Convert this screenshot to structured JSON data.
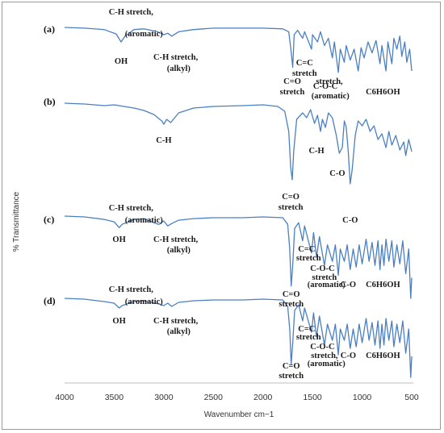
{
  "chart_data": {
    "type": "line",
    "xlabel": "Wavenumber cm−1",
    "ylabel": "% Transmittance",
    "xlim": [
      4000,
      500
    ],
    "x_ticks": [
      4000,
      3500,
      3000,
      2500,
      2000,
      1500,
      1000,
      500
    ],
    "grid": false,
    "legend": "none",
    "line_color": "#4a7fc1",
    "series": [
      {
        "panel": "(a)",
        "points": [
          [
            4000,
            0
          ],
          [
            3800,
            -1
          ],
          [
            3600,
            -3
          ],
          [
            3480,
            -9
          ],
          [
            3430,
            -20
          ],
          [
            3390,
            -12
          ],
          [
            3300,
            -3
          ],
          [
            3200,
            -2
          ],
          [
            3060,
            -6
          ],
          [
            3000,
            -10
          ],
          [
            2960,
            -8
          ],
          [
            2920,
            -12
          ],
          [
            2850,
            -6
          ],
          [
            2700,
            -3
          ],
          [
            2500,
            -1
          ],
          [
            2200,
            -1
          ],
          [
            2000,
            -1
          ],
          [
            1800,
            -2
          ],
          [
            1740,
            -6
          ],
          [
            1720,
            -28
          ],
          [
            1700,
            -55
          ],
          [
            1685,
            -10
          ],
          [
            1650,
            -4
          ],
          [
            1600,
            -15
          ],
          [
            1580,
            -6
          ],
          [
            1510,
            -30
          ],
          [
            1500,
            -10
          ],
          [
            1450,
            -20
          ],
          [
            1420,
            -6
          ],
          [
            1380,
            -25
          ],
          [
            1340,
            -15
          ],
          [
            1300,
            -42
          ],
          [
            1280,
            -20
          ],
          [
            1240,
            -62
          ],
          [
            1220,
            -30
          ],
          [
            1180,
            -48
          ],
          [
            1160,
            -25
          ],
          [
            1120,
            -45
          ],
          [
            1080,
            -30
          ],
          [
            1040,
            -60
          ],
          [
            1010,
            -28
          ],
          [
            980,
            -42
          ],
          [
            940,
            -20
          ],
          [
            900,
            -35
          ],
          [
            860,
            -18
          ],
          [
            820,
            -50
          ],
          [
            800,
            -25
          ],
          [
            760,
            -60
          ],
          [
            740,
            -20
          ],
          [
            700,
            -50
          ],
          [
            680,
            -15
          ],
          [
            650,
            -30
          ],
          [
            620,
            -12
          ],
          [
            600,
            -40
          ],
          [
            570,
            -20
          ],
          [
            550,
            -48
          ],
          [
            520,
            -30
          ],
          [
            500,
            -60
          ]
        ]
      },
      {
        "panel": "(b)",
        "points": [
          [
            4000,
            0
          ],
          [
            3800,
            -1
          ],
          [
            3600,
            -3
          ],
          [
            3500,
            -2
          ],
          [
            3400,
            -4
          ],
          [
            3300,
            -6
          ],
          [
            3200,
            -9
          ],
          [
            3100,
            -14
          ],
          [
            3020,
            -22
          ],
          [
            3000,
            -26
          ],
          [
            2970,
            -20
          ],
          [
            2930,
            -24
          ],
          [
            2850,
            -12
          ],
          [
            2700,
            -6
          ],
          [
            2500,
            -4
          ],
          [
            2200,
            -3
          ],
          [
            2000,
            -2
          ],
          [
            1850,
            -4
          ],
          [
            1780,
            -10
          ],
          [
            1740,
            -35
          ],
          [
            1720,
            -80
          ],
          [
            1705,
            -95
          ],
          [
            1690,
            -60
          ],
          [
            1660,
            -20
          ],
          [
            1600,
            -12
          ],
          [
            1560,
            -18
          ],
          [
            1520,
            -8
          ],
          [
            1480,
            -25
          ],
          [
            1450,
            -15
          ],
          [
            1420,
            -35
          ],
          [
            1400,
            -20
          ],
          [
            1370,
            -30
          ],
          [
            1340,
            -12
          ],
          [
            1300,
            -18
          ],
          [
            1260,
            -40
          ],
          [
            1230,
            -62
          ],
          [
            1200,
            -55
          ],
          [
            1180,
            -22
          ],
          [
            1160,
            -30
          ],
          [
            1140,
            -60
          ],
          [
            1120,
            -100
          ],
          [
            1100,
            -82
          ],
          [
            1070,
            -40
          ],
          [
            1040,
            -22
          ],
          [
            1000,
            -28
          ],
          [
            960,
            -20
          ],
          [
            920,
            -35
          ],
          [
            880,
            -28
          ],
          [
            840,
            -45
          ],
          [
            800,
            -38
          ],
          [
            760,
            -55
          ],
          [
            730,
            -35
          ],
          [
            700,
            -52
          ],
          [
            660,
            -40
          ],
          [
            620,
            -58
          ],
          [
            580,
            -48
          ],
          [
            560,
            -65
          ],
          [
            530,
            -45
          ],
          [
            500,
            -60
          ]
        ]
      },
      {
        "panel": "(c)",
        "points": [
          [
            4000,
            0
          ],
          [
            3800,
            -1
          ],
          [
            3600,
            -4
          ],
          [
            3500,
            -7
          ],
          [
            3450,
            -14
          ],
          [
            3420,
            -10
          ],
          [
            3300,
            -4
          ],
          [
            3200,
            -3
          ],
          [
            3100,
            -8
          ],
          [
            3050,
            -10
          ],
          [
            3000,
            -6
          ],
          [
            2960,
            -12
          ],
          [
            2920,
            -9
          ],
          [
            2850,
            -5
          ],
          [
            2700,
            -3
          ],
          [
            2500,
            -2
          ],
          [
            2200,
            -2
          ],
          [
            2000,
            -1
          ],
          [
            1800,
            -2
          ],
          [
            1750,
            -10
          ],
          [
            1730,
            -40
          ],
          [
            1715,
            -85
          ],
          [
            1700,
            -60
          ],
          [
            1680,
            -15
          ],
          [
            1640,
            -8
          ],
          [
            1600,
            -30
          ],
          [
            1580,
            -12
          ],
          [
            1510,
            -45
          ],
          [
            1490,
            -20
          ],
          [
            1460,
            -50
          ],
          [
            1430,
            -25
          ],
          [
            1380,
            -60
          ],
          [
            1350,
            -35
          ],
          [
            1300,
            -55
          ],
          [
            1270,
            -35
          ],
          [
            1240,
            -72
          ],
          [
            1220,
            -40
          ],
          [
            1180,
            -55
          ],
          [
            1150,
            -35
          ],
          [
            1120,
            -65
          ],
          [
            1090,
            -40
          ],
          [
            1060,
            -62
          ],
          [
            1030,
            -35
          ],
          [
            1000,
            -58
          ],
          [
            960,
            -28
          ],
          [
            930,
            -55
          ],
          [
            900,
            -32
          ],
          [
            870,
            -60
          ],
          [
            840,
            -30
          ],
          [
            820,
            -65
          ],
          [
            800,
            -35
          ],
          [
            780,
            -60
          ],
          [
            760,
            -28
          ],
          [
            730,
            -55
          ],
          [
            700,
            -30
          ],
          [
            680,
            -62
          ],
          [
            650,
            -35
          ],
          [
            620,
            -58
          ],
          [
            590,
            -30
          ],
          [
            560,
            -70
          ],
          [
            530,
            -40
          ],
          [
            510,
            -100
          ],
          [
            500,
            -75
          ]
        ]
      },
      {
        "panel": "(d)",
        "points": [
          [
            4000,
            0
          ],
          [
            3800,
            -1
          ],
          [
            3600,
            -4
          ],
          [
            3500,
            -6
          ],
          [
            3450,
            -12
          ],
          [
            3420,
            -9
          ],
          [
            3300,
            -4
          ],
          [
            3200,
            -3
          ],
          [
            3050,
            -7
          ],
          [
            3000,
            -9
          ],
          [
            2960,
            -6
          ],
          [
            2920,
            -10
          ],
          [
            2850,
            -5
          ],
          [
            2700,
            -3
          ],
          [
            2500,
            -2
          ],
          [
            2200,
            -2
          ],
          [
            2000,
            -1
          ],
          [
            1800,
            -2
          ],
          [
            1750,
            -10
          ],
          [
            1730,
            -38
          ],
          [
            1715,
            -82
          ],
          [
            1700,
            -55
          ],
          [
            1680,
            -15
          ],
          [
            1640,
            -8
          ],
          [
            1600,
            -28
          ],
          [
            1580,
            -12
          ],
          [
            1510,
            -42
          ],
          [
            1490,
            -18
          ],
          [
            1460,
            -48
          ],
          [
            1430,
            -22
          ],
          [
            1380,
            -58
          ],
          [
            1350,
            -32
          ],
          [
            1300,
            -52
          ],
          [
            1270,
            -32
          ],
          [
            1240,
            -70
          ],
          [
            1220,
            -38
          ],
          [
            1180,
            -52
          ],
          [
            1150,
            -32
          ],
          [
            1120,
            -62
          ],
          [
            1090,
            -38
          ],
          [
            1060,
            -60
          ],
          [
            1030,
            -32
          ],
          [
            1000,
            -55
          ],
          [
            960,
            -25
          ],
          [
            930,
            -52
          ],
          [
            900,
            -30
          ],
          [
            870,
            -58
          ],
          [
            840,
            -28
          ],
          [
            820,
            -62
          ],
          [
            800,
            -32
          ],
          [
            780,
            -58
          ],
          [
            760,
            -25
          ],
          [
            730,
            -52
          ],
          [
            700,
            -28
          ],
          [
            680,
            -60
          ],
          [
            650,
            -32
          ],
          [
            620,
            -55
          ],
          [
            590,
            -28
          ],
          [
            560,
            -68
          ],
          [
            530,
            -38
          ],
          [
            510,
            -98
          ],
          [
            500,
            -72
          ]
        ]
      }
    ],
    "annotations": {
      "a": [
        {
          "text": "C-H stretch,",
          "wn": 3330,
          "row": "a1"
        },
        {
          "text": "(aromatic)",
          "wn": 3200,
          "row": "a2"
        },
        {
          "text": "OH",
          "wn": 3430,
          "row": "a3"
        },
        {
          "text": "C-H stretch,",
          "wn": 2880,
          "row": "a4"
        },
        {
          "text": "(alkyl)",
          "wn": 2850,
          "row": "a5"
        },
        {
          "text": "C=C",
          "wn": 1580,
          "row": "a6"
        },
        {
          "text": "stretch",
          "wn": 1580,
          "row": "a7"
        },
        {
          "text": "C-O-C",
          "wn": 1370,
          "row": "a8"
        },
        {
          "text": "C=O",
          "wn": 1705,
          "row": "a9"
        },
        {
          "text": "stretch,",
          "wn": 1330,
          "row": "a9"
        },
        {
          "text": "stretch",
          "wn": 1705,
          "row": "a10"
        },
        {
          "text": "(aromatic)",
          "wn": 1320,
          "row": "a11"
        },
        {
          "text": "C6H6OH",
          "wn": 790,
          "row": "a10"
        }
      ],
      "b": [
        {
          "text": "C-H",
          "wn": 3000,
          "row": "b1"
        },
        {
          "text": "C-H",
          "wn": 1460,
          "row": "b2"
        },
        {
          "text": "C-O",
          "wn": 1250,
          "row": "b3"
        },
        {
          "text": "C=O",
          "wn": 1720,
          "row": "b4"
        },
        {
          "text": "stretch",
          "wn": 1720,
          "row": "b5"
        },
        {
          "text": "C-O",
          "wn": 1120,
          "row": "b6"
        }
      ],
      "c": [
        {
          "text": "C-H stretch,",
          "wn": 3330,
          "row": "c1"
        },
        {
          "text": "(aromatic)",
          "wn": 3200,
          "row": "c2"
        },
        {
          "text": "OH",
          "wn": 3450,
          "row": "c3"
        },
        {
          "text": "C-H stretch,",
          "wn": 2880,
          "row": "c3"
        },
        {
          "text": "(alkyl)",
          "wn": 2850,
          "row": "c4"
        },
        {
          "text": "C=C",
          "wn": 1560,
          "row": "c5"
        },
        {
          "text": "stretch",
          "wn": 1540,
          "row": "c6"
        },
        {
          "text": "C-O-C",
          "wn": 1400,
          "row": "c7"
        },
        {
          "text": "stretch",
          "wn": 1380,
          "row": "c8"
        },
        {
          "text": "(aromatic)",
          "wn": 1360,
          "row": "c9"
        },
        {
          "text": "C-O",
          "wn": 1140,
          "row": "c9"
        },
        {
          "text": "C6H6OH",
          "wn": 790,
          "row": "c9"
        },
        {
          "text": "C=O",
          "wn": 1715,
          "row": "c10"
        },
        {
          "text": "stretch",
          "wn": 1715,
          "row": "c11"
        }
      ],
      "d": [
        {
          "text": "C-H stretch,",
          "wn": 3330,
          "row": "d1"
        },
        {
          "text": "(aromatic)",
          "wn": 3200,
          "row": "d2"
        },
        {
          "text": "OH",
          "wn": 3450,
          "row": "d3"
        },
        {
          "text": "C-H stretch,",
          "wn": 2880,
          "row": "d3"
        },
        {
          "text": "(alkyl)",
          "wn": 2850,
          "row": "d4"
        },
        {
          "text": "C=C",
          "wn": 1560,
          "row": "d5"
        },
        {
          "text": "stretch",
          "wn": 1540,
          "row": "d6"
        },
        {
          "text": "C-O-C",
          "wn": 1400,
          "row": "d7"
        },
        {
          "text": "stretch,",
          "wn": 1380,
          "row": "d8"
        },
        {
          "text": "C-O",
          "wn": 1140,
          "row": "d8"
        },
        {
          "text": "C6H6OH",
          "wn": 790,
          "row": "d8"
        },
        {
          "text": "(aromatic)",
          "wn": 1360,
          "row": "d9"
        },
        {
          "text": "C=O",
          "wn": 1715,
          "row": "d10"
        },
        {
          "text": "stretch",
          "wn": 1715,
          "row": "d11"
        }
      ]
    }
  },
  "panels": [
    "(a)",
    "(b)",
    "(c)",
    "(d)"
  ]
}
